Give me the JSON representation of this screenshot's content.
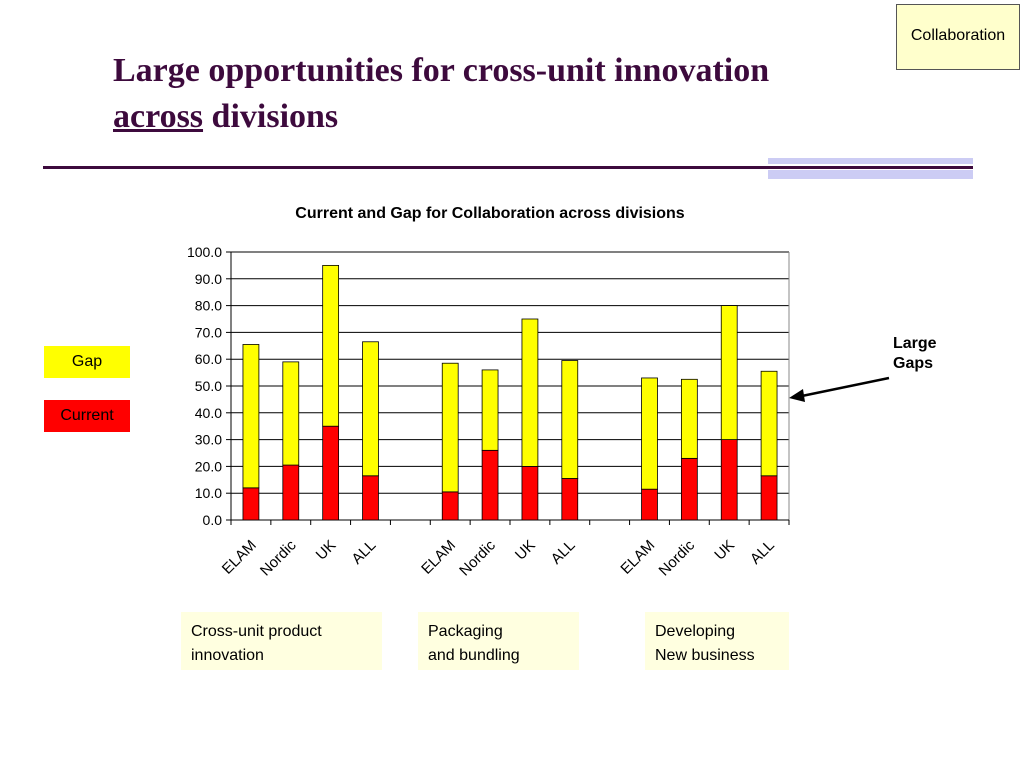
{
  "slide": {
    "tag": "Collaboration",
    "title_line1": "Large opportunities for cross-unit innovation",
    "title_line2_underlined": "across",
    "title_line2_rest": " divisions"
  },
  "legend": {
    "gap_label": "Gap",
    "current_label": "Current",
    "gap_color": "#ffff00",
    "current_color": "#ff0000"
  },
  "callout": {
    "line1": "Large",
    "line2": "Gaps"
  },
  "categories": [
    {
      "line1": "Cross-unit product",
      "line2": "innovation"
    },
    {
      "line1": "Packaging",
      "line2": "and bundling"
    },
    {
      "line1": "Developing",
      "line2": "New business"
    }
  ],
  "chart_data": {
    "type": "bar",
    "stacked": true,
    "title": "Current and Gap for Collaboration across divisions",
    "groups": [
      "Cross-unit product innovation",
      "Packaging and bundling",
      "Developing New business"
    ],
    "categories": [
      "ELAM",
      "Nordic",
      "UK",
      "ALL"
    ],
    "series": [
      {
        "name": "Current",
        "color": "#ff0000",
        "values": [
          [
            12,
            20.5,
            35,
            16.5
          ],
          [
            10.5,
            26,
            20,
            15.5
          ],
          [
            11.5,
            23,
            30,
            16.5
          ]
        ]
      },
      {
        "name": "Gap",
        "color": "#ffff00",
        "values": [
          [
            53.5,
            38.5,
            60,
            50
          ],
          [
            48,
            30,
            55,
            44
          ],
          [
            41.5,
            29.5,
            50,
            39
          ]
        ]
      }
    ],
    "ylim": [
      0,
      100
    ],
    "yticks": [
      "0.0",
      "10.0",
      "20.0",
      "30.0",
      "40.0",
      "50.0",
      "60.0",
      "70.0",
      "80.0",
      "90.0",
      "100.0"
    ],
    "grid": true,
    "legend": "left"
  }
}
